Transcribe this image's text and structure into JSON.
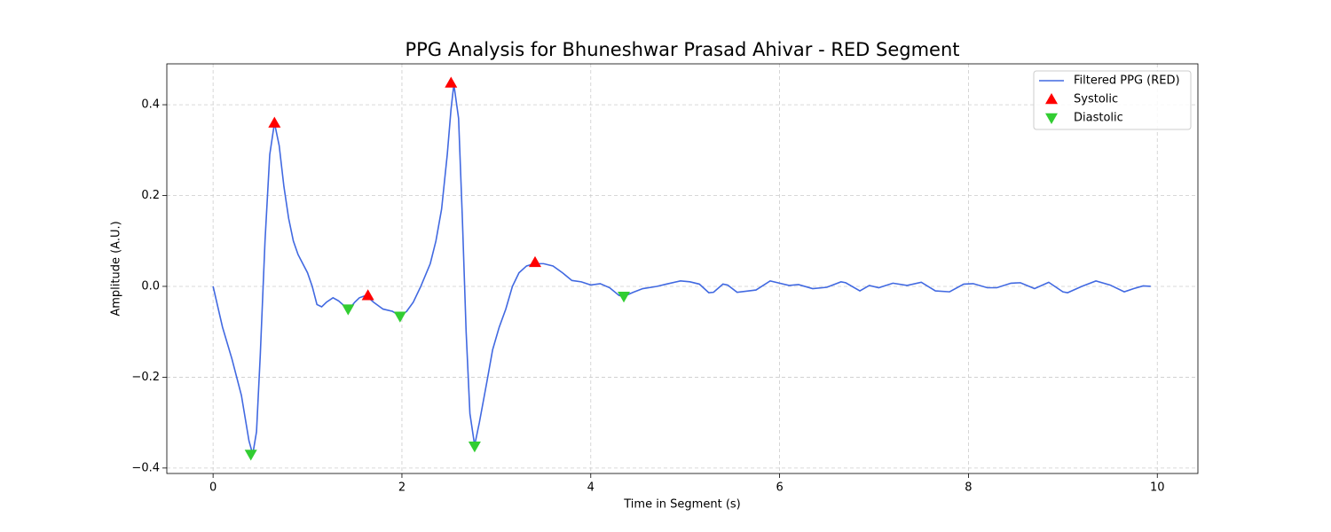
{
  "chart_data": {
    "type": "line",
    "title": "PPG Analysis for Bhuneshwar Prasad Ahivar - RED Segment",
    "xlabel": "Time in Segment (s)",
    "ylabel": "Amplitude (A.U.)",
    "xlim": [
      -0.49,
      10.43
    ],
    "ylim": [
      -0.412,
      0.49
    ],
    "xticks": [
      0,
      2,
      4,
      6,
      8,
      10
    ],
    "yticks": [
      {
        "value": -0.4,
        "label": "−0.4"
      },
      {
        "value": -0.2,
        "label": "−0.2"
      },
      {
        "value": 0,
        "label": "0.0"
      },
      0.2,
      0.4
    ],
    "grid": true,
    "legend": "upper right",
    "series": [
      {
        "name": "Filtered PPG (RED)",
        "color": "#4169e1",
        "style": "line",
        "x": [
          0,
          0.1,
          0.2,
          0.3,
          0.38,
          0.42,
          0.46,
          0.5,
          0.55,
          0.6,
          0.65,
          0.7,
          0.75,
          0.8,
          0.85,
          0.9,
          0.95,
          1.0,
          1.05,
          1.1,
          1.15,
          1.2,
          1.27,
          1.33,
          1.4,
          1.45,
          1.5,
          1.55,
          1.62,
          1.7,
          1.8,
          1.9,
          1.98,
          2.05,
          2.12,
          2.2,
          2.3,
          2.36,
          2.42,
          2.48,
          2.52,
          2.55,
          2.6,
          2.64,
          2.68,
          2.72,
          2.77,
          2.82,
          2.9,
          2.96,
          3.03,
          3.1,
          3.17,
          3.24,
          3.32,
          3.4,
          3.5,
          3.6,
          3.7,
          3.8,
          3.9,
          4.0,
          4.1,
          4.2,
          4.3,
          4.35,
          4.45,
          4.55,
          4.7,
          4.8,
          4.95,
          5.05,
          5.15,
          5.25,
          5.3,
          5.4,
          5.45,
          5.55,
          5.75,
          5.9,
          6.0,
          6.1,
          6.2,
          6.35,
          6.5,
          6.65,
          6.7,
          6.85,
          6.95,
          7.05,
          7.2,
          7.35,
          7.5,
          7.65,
          7.8,
          7.95,
          8.05,
          8.2,
          8.3,
          8.45,
          8.55,
          8.7,
          8.85,
          9.0,
          9.05,
          9.2,
          9.35,
          9.5,
          9.65,
          9.75,
          9.85,
          9.93
        ],
        "values": [
          0.0,
          -0.09,
          -0.16,
          -0.24,
          -0.34,
          -0.37,
          -0.32,
          -0.15,
          0.1,
          0.29,
          0.36,
          0.31,
          0.22,
          0.15,
          0.1,
          0.07,
          0.05,
          0.03,
          0.0,
          -0.04,
          -0.045,
          -0.035,
          -0.025,
          -0.032,
          -0.045,
          -0.048,
          -0.035,
          -0.025,
          -0.02,
          -0.035,
          -0.05,
          -0.055,
          -0.065,
          -0.055,
          -0.035,
          0.0,
          0.05,
          0.1,
          0.17,
          0.29,
          0.39,
          0.445,
          0.37,
          0.15,
          -0.1,
          -0.28,
          -0.35,
          -0.3,
          -0.21,
          -0.14,
          -0.09,
          -0.05,
          0.0,
          0.03,
          0.045,
          0.05,
          0.05,
          0.045,
          0.03,
          0.013,
          0.01,
          0.003,
          0.006,
          -0.003,
          -0.02,
          -0.022,
          -0.013,
          -0.005,
          0.0,
          0.005,
          0.012,
          0.01,
          0.005,
          -0.014,
          -0.013,
          0.005,
          0.003,
          -0.013,
          -0.008,
          0.012,
          0.007,
          0.002,
          0.004,
          -0.005,
          -0.002,
          0.01,
          0.008,
          -0.01,
          0.002,
          -0.003,
          0.007,
          0.002,
          0.009,
          -0.01,
          -0.012,
          0.005,
          0.006,
          -0.003,
          -0.003,
          0.007,
          0.008,
          -0.005,
          0.009,
          -0.012,
          -0.014,
          0.0,
          0.012,
          0.003,
          -0.012,
          -0.005,
          0.001,
          0.0
        ]
      },
      {
        "name": "Systolic",
        "color": "#ff0000",
        "style": "triangle-up",
        "x": [
          0.65,
          1.64,
          2.52,
          3.41
        ],
        "values": [
          0.36,
          -0.02,
          0.448,
          0.053
        ]
      },
      {
        "name": "Diastolic",
        "color": "#32cd32",
        "style": "triangle-down",
        "x": [
          0.4,
          1.43,
          1.98,
          2.77,
          4.35
        ],
        "values": [
          -0.37,
          -0.05,
          -0.066,
          -0.352,
          -0.022
        ]
      }
    ]
  }
}
